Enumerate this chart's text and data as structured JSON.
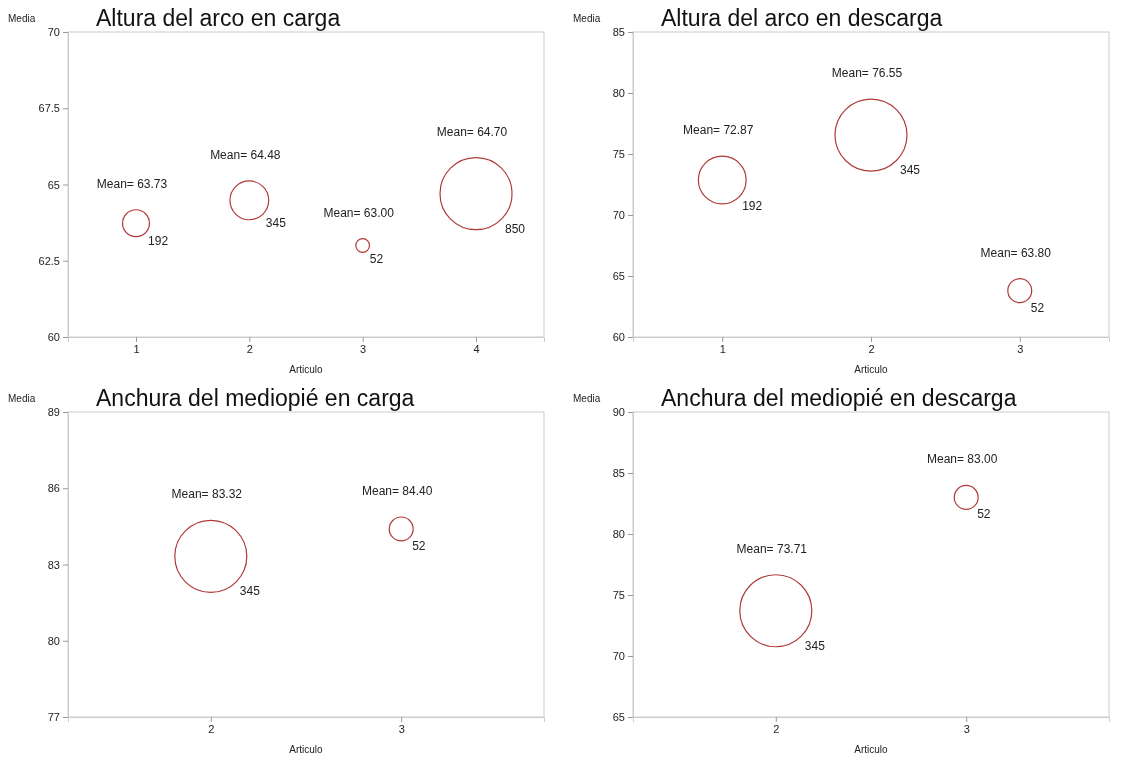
{
  "chart_data": [
    {
      "type": "bubble",
      "title": "Altura del arco en carga",
      "xlabel": "Articulo",
      "ylabel": "Media",
      "categories": [
        "1",
        "2",
        "3",
        "4"
      ],
      "ylim": [
        60,
        70
      ],
      "yticks": [
        60,
        62.5,
        65,
        67.5,
        70
      ],
      "grid": false,
      "series": [
        {
          "color": "#b03a3a",
          "values": [
            63.73,
            64.48,
            63.0,
            64.7
          ],
          "sizes": [
            0.14,
            0.29,
            0.036,
            1
          ],
          "value_labels": [
            "Mean= 63.73",
            "Mean= 64.48",
            "Mean= 63.00",
            "Mean= 64.70"
          ]
        }
      ],
      "annotations": [
        "192",
        "345",
        "52",
        "850"
      ]
    },
    {
      "type": "bubble",
      "title": "Altura del arco en descarga",
      "xlabel": "Articulo",
      "ylabel": "Media",
      "categories": [
        "1",
        "2",
        "3"
      ],
      "ylim": [
        60,
        85
      ],
      "yticks": [
        60,
        65,
        70,
        75,
        80,
        85
      ],
      "grid": false,
      "series": [
        {
          "color": "#b03a3a",
          "values": [
            72.87,
            76.55,
            63.8
          ],
          "sizes": [
            0.44,
            1,
            0.11
          ],
          "value_labels": [
            "Mean= 72.87",
            "Mean= 76.55",
            "Mean= 63.80"
          ]
        }
      ],
      "annotations": [
        "192",
        "345",
        "52"
      ]
    },
    {
      "type": "bubble",
      "title": "Anchura del mediopié en carga",
      "xlabel": "Articulo",
      "ylabel": "Media",
      "categories": [
        "2",
        "3"
      ],
      "ylim": [
        77,
        89
      ],
      "yticks": [
        77,
        80,
        83,
        86,
        89
      ],
      "grid": false,
      "series": [
        {
          "color": "#b03a3a",
          "values": [
            83.32,
            84.4
          ],
          "sizes": [
            1,
            0.11
          ],
          "value_labels": [
            "Mean= 83.32",
            "Mean= 84.40"
          ]
        }
      ],
      "annotations": [
        "345",
        "52"
      ]
    },
    {
      "type": "bubble",
      "title": "Anchura del mediopié en descarga",
      "xlabel": "Articulo",
      "ylabel": "Media",
      "categories": [
        "2",
        "3"
      ],
      "ylim": [
        65,
        90
      ],
      "yticks": [
        65,
        70,
        75,
        80,
        85,
        90
      ],
      "grid": false,
      "series": [
        {
          "color": "#b03a3a",
          "values": [
            73.71,
            83.0
          ],
          "sizes": [
            1,
            0.11
          ],
          "value_labels": [
            "Mean= 73.71",
            "Mean= 83.00"
          ]
        }
      ],
      "annotations": [
        "345",
        "52"
      ]
    }
  ]
}
